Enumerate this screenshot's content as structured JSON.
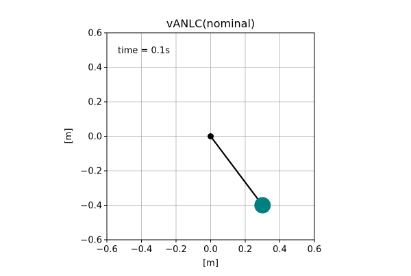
{
  "chart_data": {
    "type": "scatter",
    "title": "vANLC(nominal)",
    "xlabel": "[m]",
    "ylabel": "[m]",
    "xlim": [
      -0.6,
      0.6
    ],
    "ylim": [
      -0.6,
      0.6
    ],
    "xticks": [
      -0.6,
      -0.4,
      -0.2,
      0.0,
      0.2,
      0.4,
      0.6
    ],
    "yticks": [
      -0.6,
      -0.4,
      -0.2,
      0.0,
      0.2,
      0.4,
      0.6
    ],
    "xtick_labels": [
      "−0.6",
      "−0.4",
      "−0.2",
      "0.0",
      "0.2",
      "0.4",
      "0.6"
    ],
    "ytick_labels": [
      "−0.6",
      "−0.4",
      "−0.2",
      "0.0",
      "0.2",
      "0.4",
      "0.6"
    ],
    "grid": true,
    "annotation": "time = 0.1s",
    "series": [
      {
        "label_kind": "pendulum-rod",
        "x": [
          0.0,
          0.3
        ],
        "y": [
          0.0,
          -0.4
        ],
        "color": "#000000"
      },
      {
        "label_kind": "pivot",
        "x": [
          0.0
        ],
        "y": [
          0.0
        ],
        "color": "#000000"
      },
      {
        "label_kind": "bob",
        "x": [
          0.3
        ],
        "y": [
          -0.4
        ],
        "color": "#008080"
      }
    ]
  }
}
